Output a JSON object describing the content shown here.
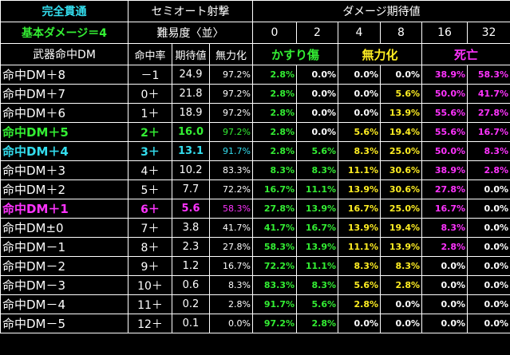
{
  "header": {
    "title1": "完全貫通",
    "title2": "基本ダメージ＝4",
    "title3": "武器命中DM",
    "mode": "セミオート射撃",
    "difficulty": "難易度〈並〉",
    "expect_title": "ダメージ期待値",
    "col_hit": "命中率",
    "col_exp": "期待値",
    "col_null": "無力化",
    "dmg_cols": [
      "0",
      "2",
      "4",
      "8",
      "16",
      "32"
    ],
    "cat_graze": "かすり傷",
    "cat_null": "無力化",
    "cat_death": "死亡"
  },
  "colors": {
    "cyan": "#33ddee",
    "green": "#33ee33",
    "yellow": "#ffee22",
    "magenta": "#ff33ff",
    "white": "#ffffff"
  },
  "rows": [
    {
      "label": "命中DM＋8",
      "hit": "－1",
      "exp": "24.9",
      "null": "97.2%",
      "d": [
        "2.8%",
        "0.0%",
        "0.0%",
        "0.0%",
        "38.9%",
        "58.3%"
      ],
      "hl": ""
    },
    {
      "label": "命中DM＋7",
      "hit": "0＋",
      "exp": "21.8",
      "null": "97.2%",
      "d": [
        "2.8%",
        "0.0%",
        "0.0%",
        "5.6%",
        "50.0%",
        "41.7%"
      ],
      "hl": ""
    },
    {
      "label": "命中DM＋6",
      "hit": "1＋",
      "exp": "18.9",
      "null": "97.2%",
      "d": [
        "2.8%",
        "0.0%",
        "0.0%",
        "13.9%",
        "55.6%",
        "27.8%"
      ],
      "hl": ""
    },
    {
      "label": "命中DM＋5",
      "hit": "2＋",
      "exp": "16.0",
      "null": "97.2%",
      "d": [
        "2.8%",
        "0.0%",
        "5.6%",
        "19.4%",
        "55.6%",
        "16.7%"
      ],
      "hl": "green"
    },
    {
      "label": "命中DM＋4",
      "hit": "3＋",
      "exp": "13.1",
      "null": "91.7%",
      "d": [
        "2.8%",
        "5.6%",
        "8.3%",
        "25.0%",
        "50.0%",
        "8.3%"
      ],
      "hl": "cyan"
    },
    {
      "label": "命中DM＋3",
      "hit": "4＋",
      "exp": "10.2",
      "null": "83.3%",
      "d": [
        "8.3%",
        "8.3%",
        "11.1%",
        "30.6%",
        "38.9%",
        "2.8%"
      ],
      "hl": ""
    },
    {
      "label": "命中DM＋2",
      "hit": "5＋",
      "exp": "7.7",
      "null": "72.2%",
      "d": [
        "16.7%",
        "11.1%",
        "13.9%",
        "30.6%",
        "27.8%",
        "0.0%"
      ],
      "hl": ""
    },
    {
      "label": "命中DM＋1",
      "hit": "6＋",
      "exp": "5.6",
      "null": "58.3%",
      "d": [
        "27.8%",
        "13.9%",
        "16.7%",
        "25.0%",
        "16.7%",
        "0.0%"
      ],
      "hl": "magenta"
    },
    {
      "label": "命中DM±0",
      "hit": "7＋",
      "exp": "3.8",
      "null": "41.7%",
      "d": [
        "41.7%",
        "16.7%",
        "13.9%",
        "19.4%",
        "8.3%",
        "0.0%"
      ],
      "hl": ""
    },
    {
      "label": "命中DM－1",
      "hit": "8＋",
      "exp": "2.3",
      "null": "27.8%",
      "d": [
        "58.3%",
        "13.9%",
        "11.1%",
        "13.9%",
        "2.8%",
        "0.0%"
      ],
      "hl": ""
    },
    {
      "label": "命中DM－2",
      "hit": "9＋",
      "exp": "1.2",
      "null": "16.7%",
      "d": [
        "72.2%",
        "11.1%",
        "8.3%",
        "8.3%",
        "0.0%",
        "0.0%"
      ],
      "hl": ""
    },
    {
      "label": "命中DM－3",
      "hit": "10＋",
      "exp": "0.6",
      "null": "8.3%",
      "d": [
        "83.3%",
        "8.3%",
        "5.6%",
        "2.8%",
        "0.0%",
        "0.0%"
      ],
      "hl": ""
    },
    {
      "label": "命中DM－4",
      "hit": "11＋",
      "exp": "0.2",
      "null": "2.8%",
      "d": [
        "91.7%",
        "5.6%",
        "2.8%",
        "0.0%",
        "0.0%",
        "0.0%"
      ],
      "hl": ""
    },
    {
      "label": "命中DM－5",
      "hit": "12＋",
      "exp": "0.1",
      "null": "0.0%",
      "d": [
        "97.2%",
        "2.8%",
        "0.0%",
        "0.0%",
        "0.0%",
        "0.0%"
      ],
      "hl": ""
    }
  ]
}
